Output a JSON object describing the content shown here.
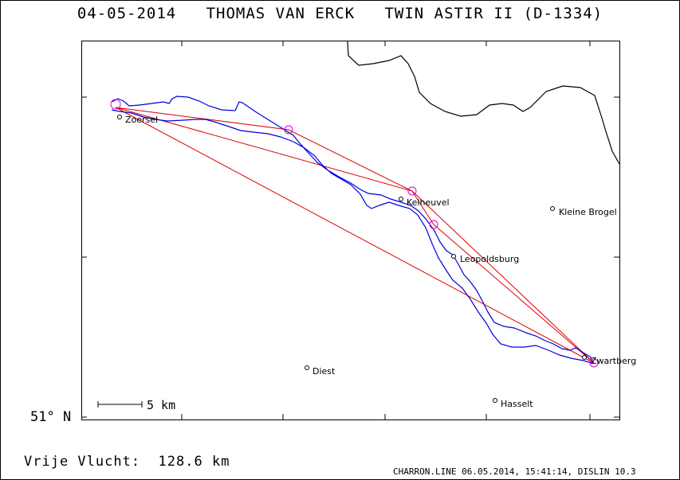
{
  "header": {
    "date": "04-05-2014",
    "pilot": "THOMAS VAN ERCK",
    "glider": "TWIN ASTIR II (D-1334)"
  },
  "map": {
    "latitude_label": "51° N",
    "scale_label": "5 km",
    "places": [
      {
        "name": "Zoersel"
      },
      {
        "name": "Kelheuvel"
      },
      {
        "name": "Kleine Brogel"
      },
      {
        "name": "Leopoldsburg"
      },
      {
        "name": "Zwartberg"
      },
      {
        "name": "Diest"
      },
      {
        "name": "Hasselt"
      }
    ],
    "colors": {
      "track": "#0000dd",
      "task": "#dd0000",
      "turnpoint": "#dd00dd",
      "border": "#000000"
    }
  },
  "footer": {
    "distance_label": "Vrije Vlucht:",
    "distance_value": "128.6 km",
    "credits": "CHARRON.LINE 06.05.2014, 15:41:14, DISLIN 10.3"
  }
}
